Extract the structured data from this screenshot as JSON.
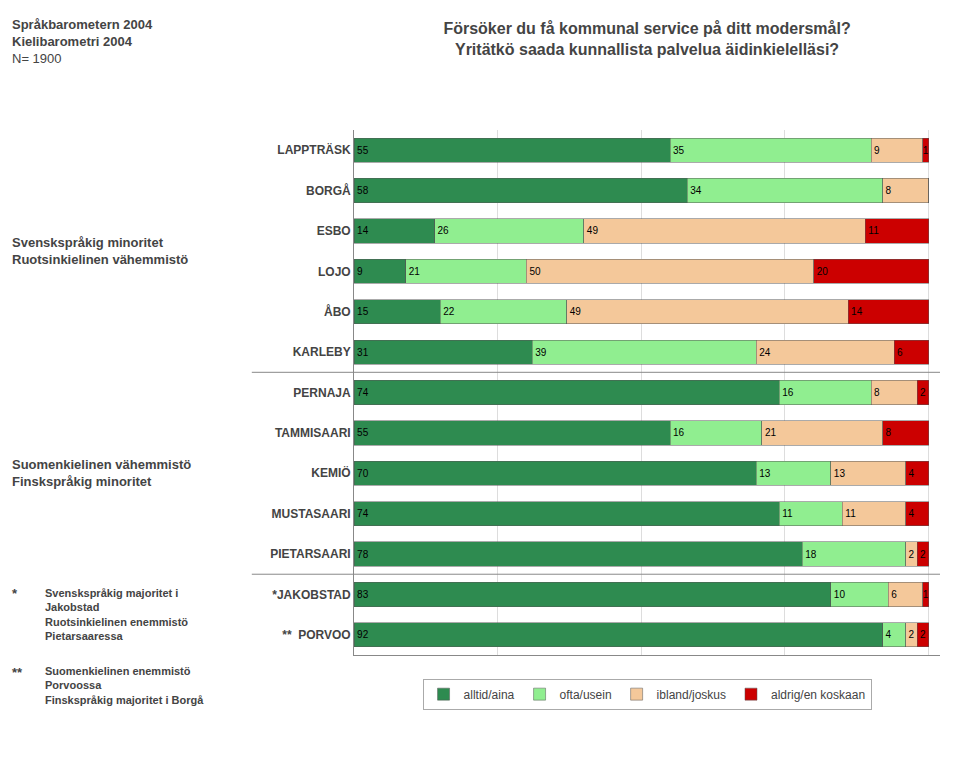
{
  "chart_data": {
    "type": "bar",
    "orientation": "horizontal",
    "stacked": true,
    "data_labels": true,
    "title": "Försöker du få kommunal service på ditt modersmål?",
    "subtitle": "Yritätkö saada kunnallista palvelua äidinkielelläsi?",
    "categories": [
      "LAPPTRÄSK",
      "BORGÅ",
      "ESBO",
      "LOJO",
      "ÅBO",
      "KARLEBY",
      "PERNAJA",
      "TAMMISAARI",
      "KEMIÖ",
      "MUSTASAARI",
      "PIETARSAARI",
      "*JAKOBSTAD",
      "**  PORVOO"
    ],
    "series": [
      {
        "name": "alltid/aina",
        "color": "#2e8b50",
        "values": [
          55,
          58,
          14,
          9,
          15,
          31,
          74,
          55,
          70,
          74,
          78,
          83,
          92
        ]
      },
      {
        "name": "ofta/usein",
        "color": "#90ee90",
        "values": [
          35,
          34,
          26,
          21,
          22,
          39,
          16,
          16,
          13,
          11,
          18,
          10,
          4
        ]
      },
      {
        "name": "ibland/joskus",
        "color": "#f4c89a",
        "values": [
          9,
          8,
          49,
          50,
          49,
          24,
          8,
          21,
          13,
          11,
          2,
          6,
          2
        ]
      },
      {
        "name": "aldrig/en koskaan",
        "color": "#cc0000",
        "values": [
          1,
          0,
          11,
          20,
          14,
          6,
          2,
          8,
          4,
          4,
          2,
          1,
          2
        ]
      }
    ],
    "xlim": [
      0,
      102
    ],
    "xticks": [
      25,
      50,
      75,
      100
    ],
    "grid": true,
    "tick_labels": "y",
    "legend": "bottom",
    "annotations": [
      "Språkbarometern 2004",
      "Kielibarometri 2004",
      "N= 1900",
      "Svenskspråkig minoritet",
      "Ruotsinkielinen vähemmistö",
      "Suomenkielinen vähemmistö",
      "Finskspråkig minoritet",
      "*",
      "Svenskspråkig majoritet i",
      "Jakobstad",
      "Ruotsinkielinen enemmistö",
      "Pietarsaaressa",
      "**",
      "Suomenkielinen enemmistö",
      "Porvoossa",
      "Finskspråkig majoritet i Borgå"
    ]
  }
}
